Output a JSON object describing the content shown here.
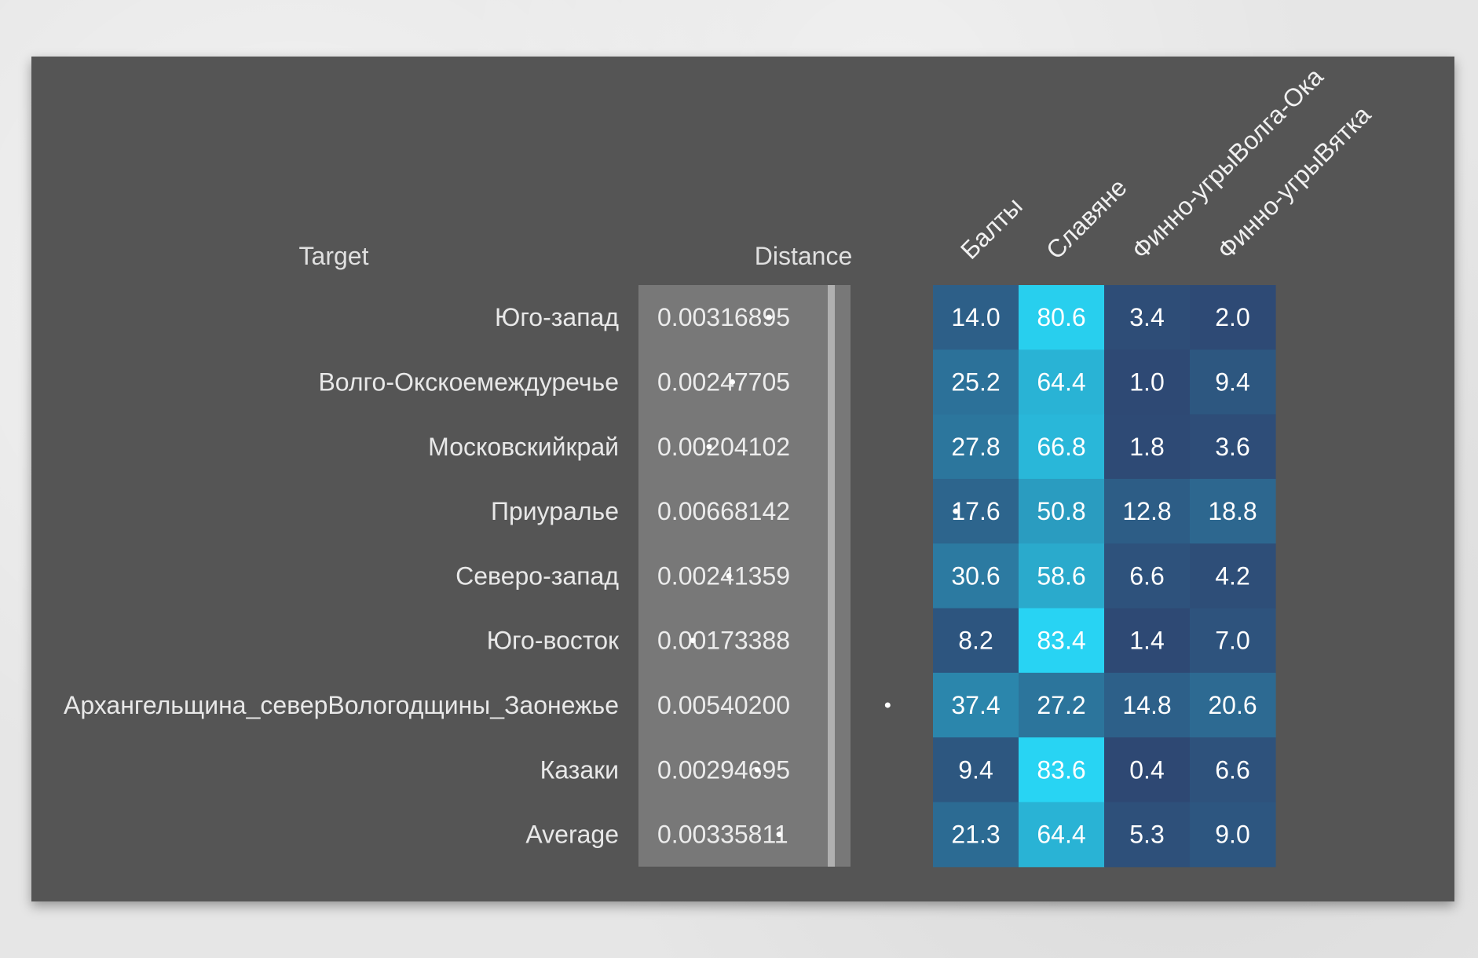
{
  "chart_data": {
    "type": "heatmap",
    "row_header": "Target",
    "distance_header": "Distance",
    "columns": [
      "Балты",
      "Славяне",
      "Финно-угрыВолга-Ока",
      "Финно-угрыВятка"
    ],
    "rows": [
      {
        "target": "Юго-запад",
        "distance": "0.00316895",
        "distance_value": 0.00316895,
        "values": [
          14.0,
          80.6,
          3.4,
          2.0
        ],
        "labels": [
          "14.0",
          "80.6",
          "3.4",
          "2.0"
        ]
      },
      {
        "target": "Волго-Окскоемеждуречье",
        "distance": "0.00247705",
        "distance_value": 0.00247705,
        "values": [
          25.2,
          64.4,
          1.0,
          9.4
        ],
        "labels": [
          "25.2",
          "64.4",
          "1.0",
          "9.4"
        ]
      },
      {
        "target": "Московскийкрай",
        "distance": "0.00204102",
        "distance_value": 0.00204102,
        "values": [
          27.8,
          66.8,
          1.8,
          3.6
        ],
        "labels": [
          "27.8",
          "66.8",
          "1.8",
          "3.6"
        ]
      },
      {
        "target": "Приуралье",
        "distance": "0.00668142",
        "distance_value": 0.00668142,
        "values": [
          17.6,
          50.8,
          12.8,
          18.8
        ],
        "labels": [
          "17.6",
          "50.8",
          "12.8",
          "18.8"
        ]
      },
      {
        "target": "Северо-запад",
        "distance": "0.00241359",
        "distance_value": 0.00241359,
        "values": [
          30.6,
          58.6,
          6.6,
          4.2
        ],
        "labels": [
          "30.6",
          "58.6",
          "6.6",
          "4.2"
        ]
      },
      {
        "target": "Юго-восток",
        "distance": "0.00173388",
        "distance_value": 0.00173388,
        "values": [
          8.2,
          83.4,
          1.4,
          7.0
        ],
        "labels": [
          "8.2",
          "83.4",
          "1.4",
          "7.0"
        ]
      },
      {
        "target": "Архангельщина_северВологодщины_Заонежье",
        "distance": "0.00540200",
        "distance_value": 0.005402,
        "values": [
          37.4,
          27.2,
          14.8,
          20.6
        ],
        "labels": [
          "37.4",
          "27.2",
          "14.8",
          "20.6"
        ]
      },
      {
        "target": "Казаки",
        "distance": "0.00294695",
        "distance_value": 0.00294695,
        "values": [
          9.4,
          83.6,
          0.4,
          6.6
        ],
        "labels": [
          "9.4",
          "83.6",
          "0.4",
          "6.6"
        ]
      },
      {
        "target": "Average",
        "distance": "0.00335811",
        "distance_value": 0.00335811,
        "values": [
          21.3,
          64.4,
          5.3,
          9.0
        ],
        "labels": [
          "21.3",
          "64.4",
          "5.3",
          "9.0"
        ]
      }
    ],
    "distance_range": [
      0,
      0.008
    ],
    "color_scale": {
      "min": 0,
      "max": 85,
      "low": "#2e4772",
      "high": "#28d6f5"
    }
  },
  "colors": {
    "panel": "#555555",
    "distance_bg": "#787878",
    "distance_line": "#b0b0b0",
    "dot": "#ffffff"
  }
}
